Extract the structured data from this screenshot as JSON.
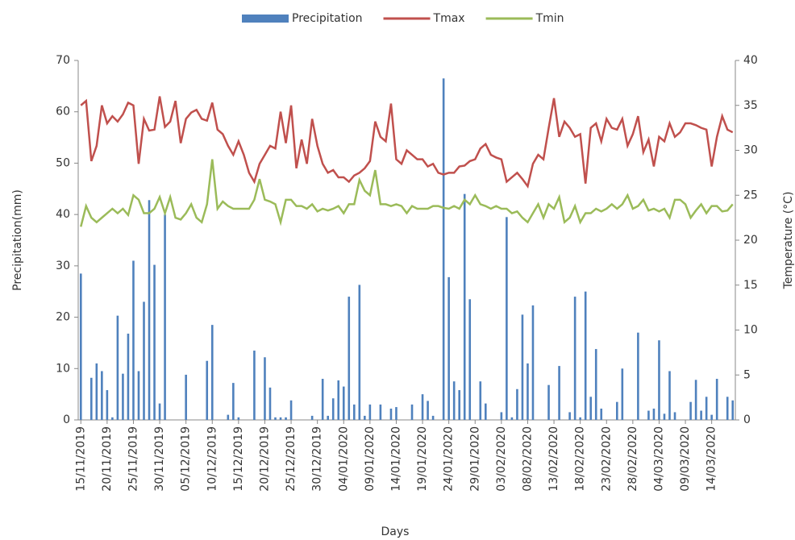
{
  "chart_data": {
    "type": "bar-line",
    "x_label": "Days",
    "y_label": "Precipitation(mm)",
    "y2_label": "Temperature (°C)",
    "categories": [
      "15/11/2019",
      null,
      null,
      null,
      null,
      "20/11/2019",
      null,
      null,
      null,
      null,
      "25/11/2019",
      null,
      null,
      null,
      null,
      "30/11/2019",
      null,
      null,
      null,
      null,
      "05/12/2019",
      null,
      null,
      null,
      null,
      "10/12/2019",
      null,
      null,
      null,
      null,
      "15/12/2019",
      null,
      null,
      null,
      null,
      "20/12/2019",
      null,
      null,
      null,
      null,
      "25/12/2019",
      null,
      null,
      null,
      null,
      "30/12/2019",
      null,
      null,
      null,
      null,
      "04/01/2020",
      null,
      null,
      null,
      null,
      "09/01/2020",
      null,
      null,
      null,
      null,
      "14/01/2020",
      null,
      null,
      null,
      null,
      "19/01/2020",
      null,
      null,
      null,
      null,
      "24/01/2020",
      null,
      null,
      null,
      null,
      "29/01/2020",
      null,
      null,
      null,
      null,
      "03/02/2020",
      null,
      null,
      null,
      null,
      "08/02/2020",
      null,
      null,
      null,
      null,
      "13/02/2020",
      null,
      null,
      null,
      null,
      "18/02/2020",
      null,
      null,
      null,
      null,
      "23/02/2020",
      null,
      null,
      null,
      null,
      "28/02/2020",
      null,
      null,
      null,
      null,
      "04/03/2020",
      null,
      null,
      null,
      null,
      "09/03/2020",
      null,
      null,
      null,
      null,
      "14/03/2020",
      null,
      null,
      null,
      null
    ],
    "series": [
      {
        "name": "Precipitation",
        "kind": "bar",
        "color": "#4f81bd",
        "values": [
          28.5,
          0,
          8.2,
          11,
          9.5,
          5.8,
          0.5,
          20.3,
          9,
          16.8,
          31,
          9.5,
          23,
          42.8,
          30.2,
          3.2,
          40,
          0,
          0,
          0,
          8.8,
          0,
          0,
          0,
          11.5,
          18.5,
          0,
          0,
          1,
          7.2,
          0.5,
          0,
          0,
          13.5,
          0,
          12.2,
          6.3,
          0.5,
          0.5,
          0.5,
          3.8,
          0,
          0,
          0,
          0.8,
          0,
          8,
          0.8,
          4.2,
          7.7,
          6.5,
          24,
          3,
          26.3,
          0.8,
          3,
          0,
          3,
          0,
          2.2,
          2.5,
          0,
          0,
          3,
          0,
          5,
          3.7,
          0.8,
          0,
          66.5,
          27.8,
          7.5,
          5.8,
          44,
          23.5,
          0,
          7.5,
          3.2,
          0,
          0,
          1.5,
          39.5,
          0.5,
          6,
          20.5,
          11,
          22.3,
          0,
          0,
          6.8,
          0,
          10.5,
          0,
          1.5,
          24,
          0.5,
          25,
          4.5,
          13.8,
          2.2,
          0,
          0,
          3.5,
          10,
          0,
          0,
          17,
          0,
          1.8,
          2.2,
          15.5,
          1.2,
          9.5,
          1.5,
          0,
          0,
          3.5,
          7.8,
          1.8,
          4.5,
          1,
          8,
          0,
          4.5,
          3.8
        ]
      },
      {
        "name": "Tmax",
        "kind": "line",
        "axis": "y2",
        "color": "#c0504d",
        "values": [
          35,
          35.5,
          28.8,
          30.5,
          35,
          33,
          33.8,
          33.2,
          34,
          35.3,
          35,
          28.5,
          33.5,
          32.2,
          32.3,
          36,
          32.6,
          33.2,
          35.5,
          30.8,
          33.5,
          34.2,
          34.5,
          33.5,
          33.3,
          35.3,
          32.3,
          31.8,
          30.5,
          29.5,
          31,
          29.5,
          27.5,
          26.5,
          28.5,
          29.5,
          30.5,
          30.2,
          34.3,
          30.8,
          35,
          28,
          31.2,
          28.5,
          33.5,
          30.5,
          28.5,
          27.5,
          27.8,
          27,
          27,
          26.5,
          27.2,
          27.5,
          28,
          28.8,
          33.2,
          31.5,
          31,
          35.2,
          29,
          28.5,
          30,
          29.5,
          29,
          29,
          28.2,
          28.5,
          27.5,
          27.3,
          27.5,
          27.5,
          28.2,
          28.3,
          28.8,
          29,
          30.2,
          30.7,
          29.5,
          29.2,
          29,
          26.5,
          27,
          27.5,
          26.8,
          26,
          28.5,
          29.5,
          29,
          32.5,
          35.8,
          31.5,
          33.2,
          32.5,
          31.5,
          31.8,
          26.3,
          32.5,
          33,
          31,
          33.5,
          32.5,
          32.3,
          33.5,
          30.5,
          31.8,
          33.8,
          29.8,
          31.2,
          28.2,
          31.5,
          31,
          33,
          31.5,
          32,
          33,
          33,
          32.8,
          32.5,
          32.3,
          28.2,
          31.5,
          33.8,
          32.3,
          32
        ]
      },
      {
        "name": "Tmin",
        "kind": "line",
        "axis": "y2",
        "color": "#9bbb59",
        "values": [
          21.5,
          23.8,
          22.5,
          22,
          22.5,
          23,
          23.5,
          23,
          23.5,
          22.8,
          25,
          24.5,
          23,
          23,
          23.5,
          24.8,
          23,
          24.8,
          22.5,
          22.3,
          23,
          24,
          22.5,
          22,
          24,
          29,
          23.5,
          24.3,
          23.8,
          23.5,
          23.5,
          23.5,
          23.5,
          24.5,
          26.8,
          24.5,
          24.3,
          24,
          22,
          24.5,
          24.5,
          23.8,
          23.8,
          23.5,
          24,
          23.2,
          23.5,
          23.3,
          23.5,
          23.8,
          23,
          24,
          24,
          26.7,
          25.5,
          25,
          27.8,
          24,
          24,
          23.8,
          24,
          23.8,
          23,
          23.8,
          23.5,
          23.5,
          23.5,
          23.8,
          23.8,
          23.6,
          23.5,
          23.8,
          23.5,
          24.5,
          24,
          25,
          24,
          23.8,
          23.5,
          23.8,
          23.5,
          23.5,
          23,
          23.2,
          22.5,
          22,
          23,
          24,
          22.5,
          24,
          23.5,
          24.8,
          22,
          22.5,
          23.8,
          22,
          23,
          23,
          23.5,
          23.2,
          23.5,
          24,
          23.5,
          24,
          25,
          23.5,
          23.8,
          24.5,
          23.3,
          23.5,
          23.2,
          23.5,
          22.5,
          24.5,
          24.5,
          24,
          22.5,
          23.3,
          24,
          23,
          23.8,
          23.8,
          23.2,
          23.3,
          24
        ]
      }
    ],
    "ylim": [
      0,
      70
    ],
    "yticks": [
      0,
      10,
      20,
      30,
      40,
      50,
      60,
      70
    ],
    "y2lim": [
      0,
      40
    ],
    "y2ticks": [
      0,
      5,
      10,
      15,
      20,
      25,
      30,
      35,
      40
    ],
    "legend": "top"
  }
}
